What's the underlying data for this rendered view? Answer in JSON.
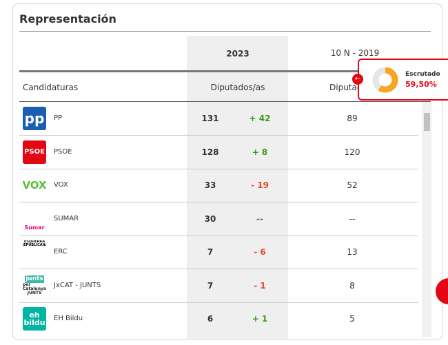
{
  "header": {
    "title": "Representación"
  },
  "table": {
    "columns": {
      "year_current": "2023",
      "year_previous": "10 N - 2019",
      "candidates": "Candidaturas",
      "seats_current": "Diputados/as",
      "seats_previous": "Diputados/as"
    },
    "rows": [
      {
        "logo": [
          "pp"
        ],
        "name": "PP",
        "seats": 131,
        "change": "+ 42",
        "previous": "89"
      },
      {
        "logo": [
          "PSOE"
        ],
        "name": "PSOE",
        "seats": 128,
        "change": "+ 8",
        "previous": "120"
      },
      {
        "logo": [
          "VOX"
        ],
        "name": "VOX",
        "seats": 33,
        "change": "- 19",
        "previous": "52"
      },
      {
        "logo": [
          "Sumar"
        ],
        "name": "SUMAR",
        "seats": 30,
        "change": "--",
        "previous": "--"
      },
      {
        "logo": [
          "ESQUERRA",
          "REPUBLICANA"
        ],
        "name": "ERC",
        "seats": 7,
        "change": "- 6",
        "previous": "13"
      },
      {
        "logo": [
          "junts",
          "per Catalunya",
          "JUNTS"
        ],
        "name": "JxCAT - JUNTS",
        "seats": 7,
        "change": "- 1",
        "previous": "8"
      },
      {
        "logo": [
          "eh",
          "bildu"
        ],
        "name": "EH Bildu",
        "seats": 6,
        "change": "+ 1",
        "previous": "5"
      }
    ]
  },
  "popup": {
    "label": "Escrutado",
    "scrutinized": {
      "value": 59.5,
      "label": "59,50%"
    }
  }
}
